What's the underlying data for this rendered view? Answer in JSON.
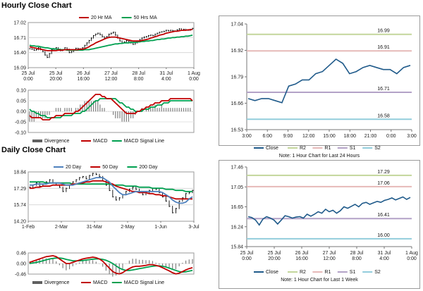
{
  "sections": {
    "hourly_title": "Hourly Close Chart",
    "daily_title": "Daily Close Chart"
  },
  "chart_data": [
    {
      "id": "hourly_price",
      "type": "line",
      "legend": [
        "20 Hr MA",
        "50 Hrs MA"
      ],
      "y_ticks": [
        "17.02",
        "16.71",
        "16.40",
        "16.09"
      ],
      "ylim": [
        16.09,
        17.02
      ],
      "x_ticks": [
        [
          "25 Jul",
          "0:00"
        ],
        [
          "25 Jul",
          "20:00"
        ],
        [
          "26 Jul",
          "16:00"
        ],
        [
          "27 Jul",
          "12:00"
        ],
        [
          "28 Jul",
          "8:00"
        ],
        [
          "31 Jul",
          "4:00"
        ],
        [
          "1 Aug",
          "0:00"
        ]
      ],
      "close": [
        16.48,
        16.47,
        16.45,
        16.46,
        16.5,
        16.46,
        16.42,
        16.35,
        16.3,
        16.38,
        16.46,
        16.48,
        16.5,
        16.47,
        16.44,
        16.46,
        16.5,
        16.47,
        16.4,
        16.42,
        16.45,
        16.49,
        16.48,
        16.46,
        16.5,
        16.55,
        16.6,
        16.65,
        16.7,
        16.75,
        16.78,
        16.8,
        16.77,
        16.73,
        16.7,
        16.73,
        16.78,
        16.8,
        16.82,
        16.76,
        16.7,
        16.64,
        16.6,
        16.62,
        16.65,
        16.63,
        16.6,
        16.57,
        16.6,
        16.64,
        16.67,
        16.7,
        16.72,
        16.73,
        16.75,
        16.76,
        16.75,
        16.78,
        16.8,
        16.82,
        16.83,
        16.84,
        16.86,
        16.85,
        16.86,
        16.85,
        16.84,
        16.87,
        16.89,
        16.86,
        16.88,
        16.87,
        16.86,
        16.88,
        16.9
      ],
      "ma20": [
        16.52,
        16.51,
        16.5,
        16.49,
        16.48,
        16.47,
        16.46,
        16.45,
        16.44,
        16.44,
        16.44,
        16.44,
        16.44,
        16.45,
        16.45,
        16.45,
        16.46,
        16.46,
        16.46,
        16.46,
        16.46,
        16.46,
        16.46,
        16.47,
        16.47,
        16.48,
        16.5,
        16.52,
        16.55,
        16.57,
        16.6,
        16.62,
        16.64,
        16.66,
        16.68,
        16.7,
        16.71,
        16.72,
        16.72,
        16.72,
        16.71,
        16.7,
        16.69,
        16.68,
        16.67,
        16.66,
        16.65,
        16.64,
        16.64,
        16.64,
        16.64,
        16.65,
        16.66,
        16.67,
        16.68,
        16.7,
        16.71,
        16.73,
        16.74,
        16.76,
        16.77,
        16.78,
        16.8,
        16.81,
        16.82,
        16.83,
        16.84,
        16.84,
        16.85,
        16.86,
        16.86,
        16.86,
        16.87,
        16.87,
        16.88
      ],
      "ma50": [
        16.55,
        16.54,
        16.54,
        16.53,
        16.53,
        16.52,
        16.51,
        16.5,
        16.5,
        16.49,
        16.48,
        16.48,
        16.47,
        16.47,
        16.46,
        16.46,
        16.46,
        16.45,
        16.45,
        16.45,
        16.45,
        16.45,
        16.45,
        16.45,
        16.45,
        16.46,
        16.46,
        16.46,
        16.47,
        16.48,
        16.49,
        16.5,
        16.51,
        16.52,
        16.53,
        16.54,
        16.55,
        16.56,
        16.57,
        16.58,
        16.58,
        16.59,
        16.59,
        16.6,
        16.6,
        16.6,
        16.61,
        16.61,
        16.61,
        16.62,
        16.62,
        16.63,
        16.63,
        16.64,
        16.64,
        16.65,
        16.65,
        16.66,
        16.67,
        16.67,
        16.68,
        16.68,
        16.69,
        16.7,
        16.7,
        16.71,
        16.71,
        16.72,
        16.72,
        16.73,
        16.73,
        16.74,
        16.74,
        16.75,
        16.76
      ]
    },
    {
      "id": "hourly_macd",
      "type": "line",
      "legend": [
        "Divergence",
        "MACD",
        "MACD Signal Line"
      ],
      "y_ticks": [
        "0.10",
        "0.05",
        "0.00",
        "-0.05",
        "-0.10"
      ],
      "ylim": [
        -0.1,
        0.1
      ],
      "macd": [
        -0.02,
        -0.03,
        -0.03,
        -0.03,
        -0.03,
        -0.03,
        -0.04,
        -0.04,
        -0.04,
        -0.04,
        -0.03,
        -0.03,
        -0.02,
        -0.02,
        -0.02,
        -0.02,
        -0.01,
        -0.01,
        -0.01,
        -0.01,
        -0.01,
        0,
        0,
        0.01,
        0.02,
        0.03,
        0.04,
        0.05,
        0.06,
        0.07,
        0.08,
        0.08,
        0.08,
        0.07,
        0.07,
        0.06,
        0.06,
        0.06,
        0.05,
        0.04,
        0.03,
        0.02,
        0.01,
        0,
        -0.01,
        -0.01,
        -0.01,
        -0.01,
        -0.01,
        0,
        0,
        0.01,
        0.01,
        0.02,
        0.02,
        0.03,
        0.03,
        0.04,
        0.04,
        0.04,
        0.05,
        0.05,
        0.05,
        0.05,
        0.06,
        0.06,
        0.06,
        0.06,
        0.06,
        0.06,
        0.06,
        0.06,
        0.06,
        0.06,
        0.05
      ],
      "signal": [
        0.01,
        0,
        0,
        -0.01,
        -0.01,
        -0.02,
        -0.02,
        -0.02,
        -0.03,
        -0.03,
        -0.03,
        -0.03,
        -0.03,
        -0.03,
        -0.03,
        -0.02,
        -0.02,
        -0.02,
        -0.02,
        -0.02,
        -0.01,
        -0.01,
        -0.01,
        -0.01,
        0,
        0,
        0.01,
        0.02,
        0.03,
        0.04,
        0.05,
        0.05,
        0.06,
        0.06,
        0.06,
        0.06,
        0.06,
        0.06,
        0.06,
        0.06,
        0.05,
        0.04,
        0.04,
        0.03,
        0.02,
        0.02,
        0.01,
        0.01,
        0,
        0,
        0,
        0,
        0.01,
        0.01,
        0.01,
        0.02,
        0.02,
        0.02,
        0.03,
        0.03,
        0.03,
        0.04,
        0.04,
        0.04,
        0.05,
        0.05,
        0.05,
        0.05,
        0.05,
        0.05,
        0.05,
        0.05,
        0.05,
        0.05,
        0.05
      ]
    },
    {
      "id": "hourly_24h",
      "type": "line",
      "y_ticks": [
        "17.04",
        "16.92",
        "16.79",
        "16.66",
        "16.53"
      ],
      "ylim": [
        16.53,
        17.04
      ],
      "x_ticks": [
        "3:00",
        "6:00",
        "9:00",
        "12:00",
        "15:00",
        "18:00",
        "21:00",
        "0:00",
        "3:00"
      ],
      "close": [
        16.68,
        16.67,
        16.68,
        16.68,
        16.67,
        16.66,
        16.74,
        16.75,
        16.77,
        16.77,
        16.8,
        16.81,
        16.84,
        16.87,
        16.85,
        16.8,
        16.81,
        16.83,
        16.84,
        16.83,
        16.82,
        16.82,
        16.8,
        16.83,
        16.84
      ],
      "levels": {
        "R2": 16.99,
        "R1": 16.91,
        "S1": 16.71,
        "S2": 16.58
      },
      "level_labels": [
        "16.99",
        "16.91",
        "16.71",
        "16.58"
      ],
      "legend": [
        "Close",
        "R2",
        "R1",
        "S1",
        "S2"
      ],
      "note": "Note: 1 Hour Chart for Last 24 Hours"
    },
    {
      "id": "daily_price",
      "type": "line",
      "legend": [
        "20 Day",
        "50 Day",
        "200 Day"
      ],
      "y_ticks": [
        "18.84",
        "17.29",
        "15.74",
        "14.20"
      ],
      "ylim": [
        14.2,
        18.84
      ],
      "x_ticks": [
        "1-Feb",
        "2-Mar",
        "31-Mar",
        "2-May",
        "1-Jun",
        "3-Jul"
      ],
      "close": [
        17.4,
        17.6,
        17.8,
        17.5,
        17.7,
        17.9,
        18.1,
        17.8,
        17.6,
        17.4,
        17.0,
        17.3,
        17.6,
        17.9,
        18.1,
        18.3,
        18.4,
        18.2,
        18.5,
        18.7,
        18.6,
        18.4,
        18.0,
        17.6,
        17.1,
        16.5,
        16.2,
        16.4,
        16.7,
        17.0,
        17.2,
        17.4,
        17.2,
        16.9,
        16.7,
        16.9,
        17.1,
        17.3,
        17.2,
        16.9,
        16.5,
        16.1,
        15.6,
        15.0,
        15.4,
        16.1,
        16.4,
        16.8,
        16.9,
        17.1
      ],
      "ma20": [
        17.6,
        17.6,
        17.7,
        17.7,
        17.7,
        17.7,
        17.8,
        17.8,
        17.8,
        17.8,
        17.7,
        17.6,
        17.6,
        17.6,
        17.7,
        17.8,
        17.9,
        18.0,
        18.1,
        18.2,
        18.3,
        18.3,
        18.3,
        18.1,
        17.9,
        17.5,
        17.2,
        16.9,
        16.7,
        16.7,
        16.8,
        16.9,
        17.0,
        17.0,
        17.0,
        17.0,
        17.0,
        17.0,
        17.0,
        17.0,
        16.9,
        16.7,
        16.5,
        16.2,
        16.0,
        15.9,
        15.9,
        16.0,
        16.3,
        16.5
      ],
      "ma50": [
        17.3,
        17.3,
        17.4,
        17.4,
        17.5,
        17.5,
        17.5,
        17.6,
        17.6,
        17.6,
        17.6,
        17.6,
        17.6,
        17.7,
        17.7,
        17.8,
        17.8,
        17.9,
        17.9,
        18.0,
        18.0,
        18.0,
        18.0,
        17.9,
        17.8,
        17.7,
        17.5,
        17.4,
        17.3,
        17.2,
        17.1,
        17.0,
        17.0,
        16.9,
        16.9,
        16.9,
        16.8,
        16.8,
        16.7,
        16.7,
        16.6,
        16.6,
        16.5,
        16.4,
        16.3,
        16.3,
        16.3,
        16.3,
        16.3,
        16.3
      ],
      "ma200": [
        17.9,
        17.9,
        17.9,
        17.9,
        17.9,
        17.8,
        17.8,
        17.8,
        17.8,
        17.8,
        17.8,
        17.8,
        17.8,
        17.7,
        17.7,
        17.7,
        17.7,
        17.7,
        17.7,
        17.7,
        17.7,
        17.7,
        17.7,
        17.7,
        17.7,
        17.6,
        17.6,
        17.6,
        17.6,
        17.5,
        17.5,
        17.5,
        17.5,
        17.4,
        17.4,
        17.4,
        17.4,
        17.3,
        17.3,
        17.3,
        17.3,
        17.2,
        17.2,
        17.2,
        17.1,
        17.1,
        17.1,
        17.0,
        17.0,
        17.0
      ]
    },
    {
      "id": "daily_macd",
      "type": "line",
      "legend": [
        "Divergence",
        "MACD",
        "MACD Signal Line"
      ],
      "y_ticks": [
        "0.46",
        "0.00",
        "-0.46"
      ],
      "ylim": [
        -0.46,
        0.46
      ],
      "macd": [
        0.05,
        0.1,
        0.15,
        0.2,
        0.25,
        0.3,
        0.32,
        0.34,
        0.3,
        0.2,
        0.1,
        0.0,
        0.0,
        0.05,
        0.1,
        0.15,
        0.2,
        0.23,
        0.25,
        0.28,
        0.25,
        0.2,
        0.1,
        -0.05,
        -0.2,
        -0.35,
        -0.42,
        -0.45,
        -0.4,
        -0.3,
        -0.22,
        -0.15,
        -0.12,
        -0.12,
        -0.1,
        -0.08,
        -0.05,
        -0.05,
        -0.08,
        -0.12,
        -0.18,
        -0.25,
        -0.32,
        -0.4,
        -0.45,
        -0.42,
        -0.35,
        -0.28,
        -0.22,
        -0.18
      ],
      "signal": [
        0.0,
        0.02,
        0.05,
        0.08,
        0.12,
        0.16,
        0.2,
        0.22,
        0.24,
        0.24,
        0.22,
        0.18,
        0.15,
        0.12,
        0.12,
        0.12,
        0.13,
        0.15,
        0.17,
        0.19,
        0.2,
        0.2,
        0.18,
        0.14,
        0.08,
        0.0,
        -0.1,
        -0.2,
        -0.26,
        -0.3,
        -0.3,
        -0.28,
        -0.25,
        -0.22,
        -0.2,
        -0.17,
        -0.14,
        -0.12,
        -0.1,
        -0.1,
        -0.12,
        -0.15,
        -0.2,
        -0.25,
        -0.3,
        -0.35,
        -0.37,
        -0.36,
        -0.33,
        -0.3
      ]
    },
    {
      "id": "daily_week",
      "type": "line",
      "y_ticks": [
        "17.46",
        "17.05",
        "16.65",
        "16.24",
        "15.84"
      ],
      "ylim": [
        15.84,
        17.46
      ],
      "x_ticks": [
        [
          "25 Jul",
          "0:00"
        ],
        [
          "25 Jul",
          "20:00"
        ],
        [
          "26 Jul",
          "16:00"
        ],
        [
          "27 Jul",
          "12:00"
        ],
        [
          "28 Jul",
          "8:00"
        ],
        [
          "31 Jul",
          "4:00"
        ],
        [
          "1 Aug",
          "0:00"
        ]
      ],
      "close": [
        16.45,
        16.43,
        16.38,
        16.28,
        16.4,
        16.45,
        16.42,
        16.38,
        16.3,
        16.38,
        16.47,
        16.45,
        16.42,
        16.44,
        16.45,
        16.42,
        16.5,
        16.46,
        16.5,
        16.55,
        16.52,
        16.6,
        16.55,
        16.58,
        16.52,
        16.57,
        16.65,
        16.62,
        16.66,
        16.7,
        16.65,
        16.72,
        16.74,
        16.7,
        16.73,
        16.76,
        16.74,
        16.78,
        16.8,
        16.83,
        16.79,
        16.82,
        16.85,
        16.8,
        16.84
      ],
      "levels": {
        "R2": 17.29,
        "R1": 17.06,
        "S1": 16.41,
        "S2": 16.0
      },
      "level_labels": [
        "17.29",
        "17.06",
        "16.41",
        "16.00"
      ],
      "legend": [
        "Close",
        "R2",
        "R1",
        "S1",
        "S2"
      ],
      "note": "Note: 1 Hour Chart for Last 1 Week"
    }
  ],
  "colors": {
    "close": "#1f5a8a",
    "ma_red": "#c00000",
    "ma_green": "#00a050",
    "ma_blue": "#4f81bd",
    "r2": "#c3d69b",
    "r1": "#e6b9b8",
    "s1": "#b3a2c7",
    "s2": "#92cddc",
    "divergence": "#808080"
  }
}
